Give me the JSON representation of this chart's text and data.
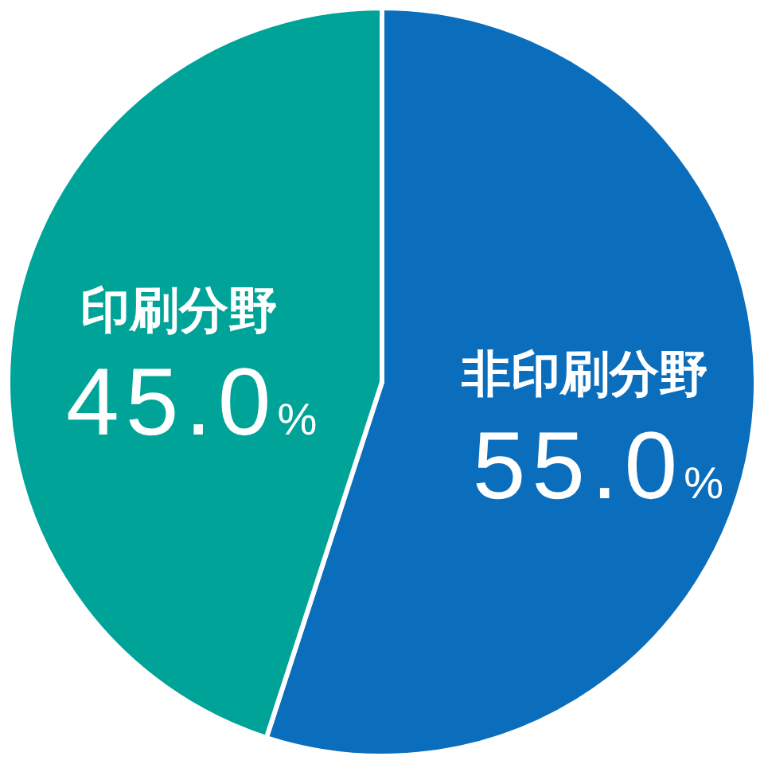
{
  "chart_data": {
    "type": "pie",
    "categories": [
      "非印刷分野",
      "印刷分野"
    ],
    "values": [
      55.0,
      45.0
    ],
    "colors": [
      "#0a6ebd",
      "#00a398"
    ],
    "value_labels": [
      "55.0%",
      "45.0%"
    ]
  }
}
